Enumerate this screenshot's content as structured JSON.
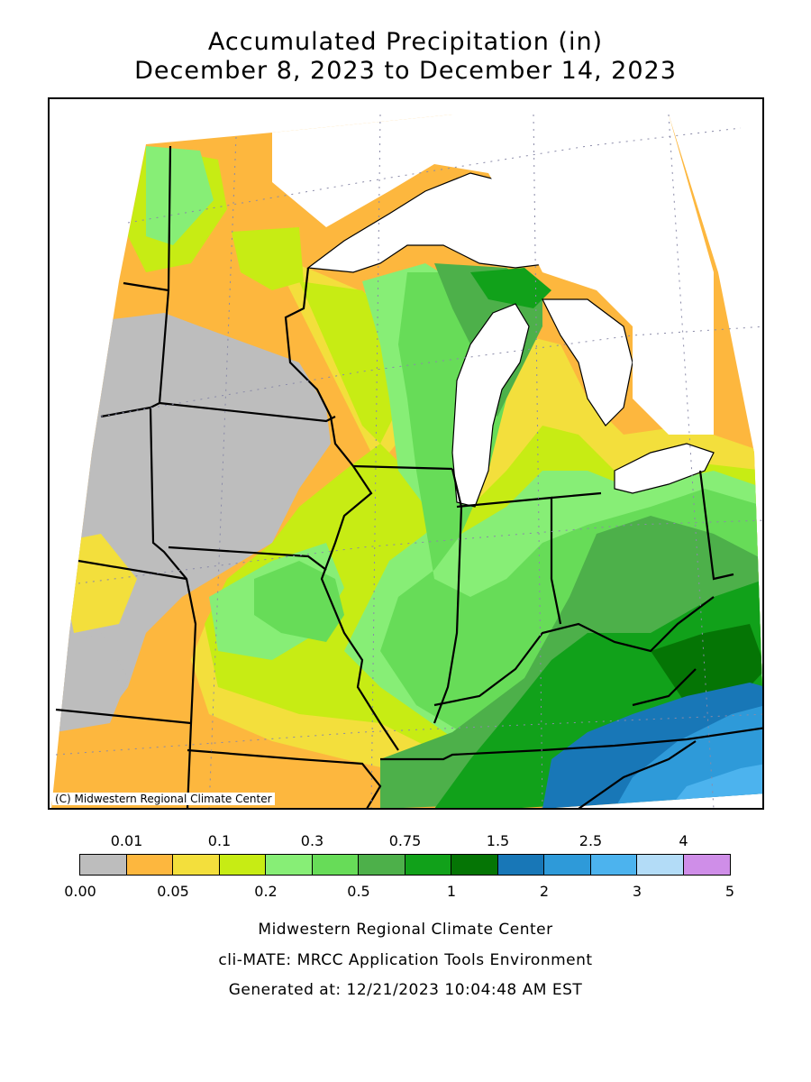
{
  "title": {
    "line1": "Accumulated Precipitation (in)",
    "line2": "December 8, 2023 to December 14, 2023"
  },
  "map": {
    "credit": "(C) Midwestern Regional Climate Center",
    "regions_shown": [
      "Minnesota",
      "Wisconsin",
      "Michigan",
      "Iowa",
      "Illinois",
      "Indiana",
      "Ohio",
      "Missouri",
      "Kentucky"
    ]
  },
  "legend": {
    "top_labels": [
      "0.01",
      "0.1",
      "0.3",
      "0.75",
      "1.5",
      "2.5",
      "4"
    ],
    "bottom_labels": [
      "0.00",
      "0.05",
      "0.2",
      "0.5",
      "1",
      "2",
      "3",
      "5"
    ],
    "colors": [
      "#bdbdbd",
      "#fdb73e",
      "#f3df3c",
      "#c7ec14",
      "#87ee76",
      "#67dc58",
      "#4db04a",
      "#11a11a",
      "#057505",
      "#1877b7",
      "#2e9ad9",
      "#4cb3ee",
      "#b3dcf7",
      "#cf8ee8"
    ]
  },
  "footer": {
    "line1": "Midwestern Regional Climate Center",
    "line2": "cli-MATE: MRCC Application Tools Environment",
    "line3": "Generated at: 12/21/2023 10:04:48 AM EST"
  }
}
